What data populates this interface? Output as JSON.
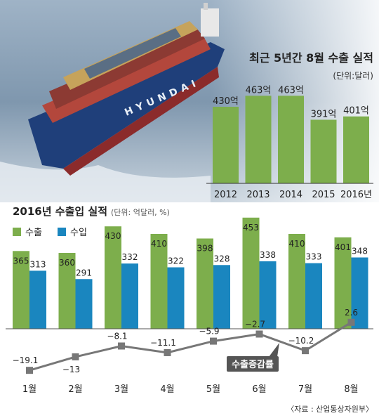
{
  "top_chart": {
    "title": "최근 5년간 8월 수출 실적",
    "unit": "(단위:달러)",
    "categories": [
      "2012",
      "2013",
      "2014",
      "2015",
      "2016년"
    ],
    "values": [
      430,
      463,
      463,
      391,
      401
    ],
    "value_labels": [
      "430억",
      "463억",
      "463억",
      "391억",
      "401억"
    ],
    "colors": {
      "bar": "#7dae4c"
    }
  },
  "bottom_chart": {
    "title": "2016년 수출입 실적",
    "unit": "(단위: 억달러, %)",
    "legend": [
      {
        "name": "수출",
        "color": "#7dae4c"
      },
      {
        "name": "수입",
        "color": "#1a86bf"
      }
    ],
    "categories": [
      "1월",
      "2월",
      "3월",
      "4월",
      "5월",
      "6월",
      "7월",
      "8월"
    ],
    "exports": [
      365,
      360,
      430,
      410,
      398,
      453,
      410,
      401
    ],
    "imports": [
      313,
      291,
      332,
      322,
      328,
      338,
      333,
      348
    ],
    "growth": [
      -19.1,
      -13,
      -8.1,
      -11.1,
      -5.9,
      -2.7,
      -10.2,
      2.6
    ],
    "growth_labels": [
      "−19.1",
      "−13",
      "−8.1",
      "−11.1",
      "−5.9",
      "−2.7",
      "−10.2",
      "2.6"
    ],
    "growth_series_label": "수출증감률",
    "colors": {
      "line": "#777777",
      "callout": "#555555"
    }
  },
  "chart_data": [
    {
      "type": "bar",
      "title": "최근 5년간 8월 수출 실적",
      "unit": "(단위:달러)",
      "categories": [
        "2012",
        "2013",
        "2014",
        "2015",
        "2016년"
      ],
      "values": [
        430,
        463,
        463,
        391,
        401
      ]
    },
    {
      "type": "bar",
      "title": "2016년 수출입 실적",
      "unit": "(단위: 억달러, %)",
      "categories": [
        "1월",
        "2월",
        "3월",
        "4월",
        "5월",
        "6월",
        "7월",
        "8월"
      ],
      "series": [
        {
          "name": "수출",
          "values": [
            365,
            360,
            430,
            410,
            398,
            453,
            410,
            401
          ]
        },
        {
          "name": "수입",
          "values": [
            313,
            291,
            332,
            322,
            328,
            338,
            333,
            348
          ]
        },
        {
          "name": "수출증감률",
          "values": [
            -19.1,
            -13,
            -8.1,
            -11.1,
            -5.9,
            -2.7,
            -10.2,
            2.6
          ]
        }
      ],
      "legend": "top-left"
    }
  ],
  "source": "〈자료 : 산업통상자원부〉"
}
